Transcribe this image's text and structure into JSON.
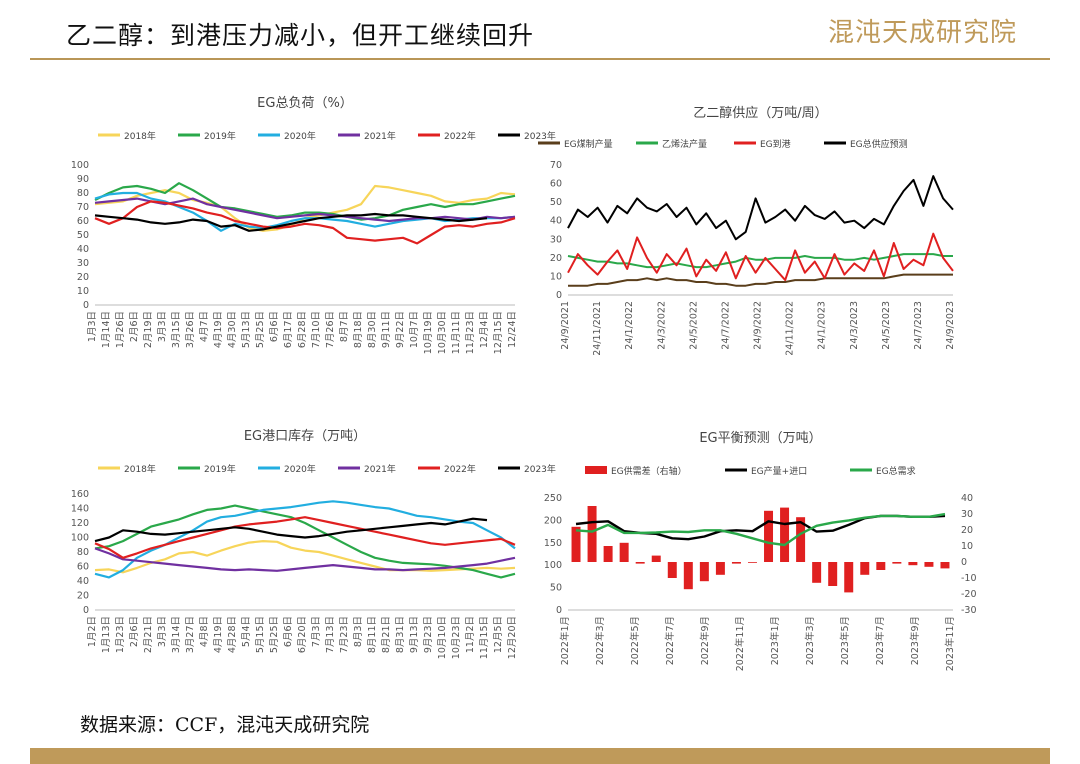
{
  "header": {
    "title": "乙二醇：到港压力减小，但开工继续回升",
    "logo_text": "混沌天成研究院",
    "accent_color": "#bf9a5a"
  },
  "source": "数据来源：CCF，混沌天成研究院",
  "chart_data": [
    {
      "id": "load",
      "type": "line",
      "title": "EG总负荷（%）",
      "ylim": [
        0,
        100
      ],
      "yticks": [
        0,
        10,
        20,
        30,
        40,
        50,
        60,
        70,
        80,
        90,
        100
      ],
      "x_labels": [
        "1月3日",
        "1月14日",
        "1月26日",
        "2月6日",
        "2月19日",
        "3月3日",
        "3月15日",
        "3月26日",
        "4月7日",
        "4月19日",
        "4月30日",
        "5月13日",
        "5月25日",
        "6月6日",
        "6月17日",
        "6月28日",
        "7月10日",
        "7月26日",
        "8月7日",
        "8月18日",
        "8月30日",
        "9月11日",
        "9月22日",
        "10月7日",
        "10月19日",
        "10月30日",
        "11月11日",
        "11月23日",
        "12月4日",
        "12月15日",
        "12/24日"
      ],
      "series": [
        {
          "name": "2018年",
          "color": "#f7d55a",
          "values": [
            72,
            73,
            74,
            78,
            80,
            82,
            80,
            75,
            73,
            70,
            62,
            55,
            53,
            54,
            57,
            62,
            64,
            66,
            68,
            72,
            85,
            84,
            82,
            80,
            78,
            74,
            73,
            75,
            76,
            80,
            79
          ]
        },
        {
          "name": "2019年",
          "color": "#2aa84a",
          "values": [
            75,
            80,
            84,
            85,
            83,
            80,
            87,
            82,
            76,
            70,
            69,
            67,
            65,
            63,
            64,
            66,
            66,
            65,
            63,
            61,
            62,
            64,
            68,
            70,
            72,
            70,
            72,
            72,
            74,
            76,
            78
          ]
        },
        {
          "name": "2020年",
          "color": "#22aee0",
          "values": [
            76,
            79,
            80,
            80,
            76,
            74,
            70,
            66,
            60,
            53,
            58,
            56,
            55,
            57,
            60,
            62,
            62,
            61,
            60,
            58,
            56,
            58,
            60,
            61,
            62,
            60,
            61,
            62,
            62,
            62,
            63
          ]
        },
        {
          "name": "2021年",
          "color": "#7030a0",
          "values": [
            73,
            74,
            75,
            76,
            74,
            72,
            74,
            76,
            72,
            70,
            68,
            66,
            64,
            62,
            63,
            64,
            65,
            64,
            63,
            62,
            61,
            60,
            61,
            62,
            62,
            63,
            62,
            61,
            63,
            62,
            63
          ]
        },
        {
          "name": "2022年",
          "color": "#e02020",
          "values": [
            62,
            58,
            62,
            70,
            74,
            73,
            71,
            69,
            66,
            64,
            60,
            58,
            56,
            55,
            56,
            58,
            57,
            55,
            48,
            47,
            46,
            47,
            48,
            44,
            50,
            56,
            57,
            56,
            58,
            59,
            62
          ]
        },
        {
          "name": "2023年",
          "color": "#000000",
          "values": [
            64,
            63,
            62,
            61,
            59,
            58,
            59,
            61,
            60,
            56,
            57,
            53,
            54,
            56,
            58,
            60,
            62,
            63,
            64,
            64,
            65,
            64,
            64,
            63,
            62,
            61,
            60,
            61,
            62
          ]
        }
      ]
    },
    {
      "id": "supply",
      "type": "line",
      "title": "乙二醇供应（万吨/周）",
      "ylim": [
        0,
        70
      ],
      "yticks": [
        0,
        10,
        20,
        30,
        40,
        50,
        60,
        70
      ],
      "x_labels": [
        "24/9/2021",
        "24/11/2021",
        "24/1/2022",
        "24/3/2022",
        "24/5/2022",
        "24/7/2022",
        "24/9/2022",
        "24/11/2022",
        "24/1/2023",
        "24/3/2023",
        "24/5/2023",
        "24/7/2023",
        "24/9/2023"
      ],
      "series": [
        {
          "name": "EG煤制产量",
          "color": "#5a3e1b",
          "values": [
            5,
            5,
            5,
            6,
            6,
            7,
            8,
            8,
            9,
            8,
            9,
            8,
            8,
            7,
            7,
            6,
            6,
            5,
            5,
            6,
            6,
            7,
            7,
            8,
            8,
            8,
            9,
            9,
            9,
            9,
            9,
            9,
            9,
            10,
            11,
            11,
            11,
            11,
            11,
            11
          ]
        },
        {
          "name": "乙烯法产量",
          "color": "#2aa84a",
          "values": [
            21,
            20,
            19,
            18,
            18,
            17,
            17,
            16,
            15,
            15,
            16,
            17,
            16,
            15,
            15,
            16,
            17,
            18,
            20,
            19,
            19,
            20,
            20,
            20,
            21,
            20,
            20,
            20,
            19,
            19,
            20,
            19,
            20,
            21,
            22,
            22,
            22,
            22,
            21,
            21
          ]
        },
        {
          "name": "EG到港",
          "color": "#e02020",
          "values": [
            12,
            22,
            16,
            11,
            18,
            24,
            14,
            31,
            20,
            12,
            22,
            16,
            25,
            10,
            19,
            13,
            23,
            9,
            21,
            12,
            20,
            14,
            8,
            24,
            12,
            18,
            9,
            22,
            11,
            17,
            13,
            24,
            10,
            28,
            14,
            19,
            16,
            33,
            20,
            13
          ]
        },
        {
          "name": "EG总供应预测",
          "color": "#000000",
          "values": [
            36,
            46,
            42,
            47,
            39,
            48,
            44,
            52,
            47,
            45,
            49,
            42,
            47,
            38,
            44,
            36,
            40,
            30,
            34,
            52,
            39,
            42,
            46,
            40,
            48,
            43,
            41,
            45,
            39,
            40,
            36,
            41,
            38,
            48,
            56,
            62,
            48,
            64,
            52,
            46
          ]
        }
      ]
    },
    {
      "id": "inventory",
      "type": "line",
      "title": "EG港口库存（万吨）",
      "ylim": [
        0,
        160
      ],
      "yticks": [
        0,
        20,
        40,
        60,
        80,
        100,
        120,
        140,
        160
      ],
      "x_labels": [
        "1月2日",
        "1月13日",
        "1月23日",
        "2月6日",
        "2月21日",
        "3月3日",
        "3月14日",
        "3月27日",
        "4月8日",
        "4月19日",
        "4月28日",
        "5月4日",
        "5月15日",
        "5月25日",
        "6月6日",
        "6月20日",
        "7月3日",
        "7月13日",
        "7月23日",
        "8月3日",
        "8月11日",
        "8月21日",
        "8月31日",
        "9月13日",
        "9月23日",
        "10月10日",
        "10月23日",
        "11月2日",
        "11月15日",
        "12月5日",
        "12月20日"
      ],
      "series": [
        {
          "name": "2018年",
          "color": "#f7d55a",
          "values": [
            55,
            56,
            52,
            58,
            65,
            70,
            78,
            80,
            75,
            82,
            88,
            93,
            95,
            94,
            86,
            82,
            80,
            75,
            70,
            65,
            60,
            55,
            55,
            55,
            54,
            55,
            56,
            57,
            58,
            57,
            58
          ]
        },
        {
          "name": "2019年",
          "color": "#2aa84a",
          "values": [
            85,
            88,
            95,
            105,
            115,
            120,
            125,
            132,
            138,
            140,
            144,
            140,
            136,
            132,
            128,
            120,
            110,
            100,
            90,
            80,
            72,
            68,
            65,
            64,
            63,
            61,
            58,
            55,
            50,
            45,
            50
          ]
        },
        {
          "name": "2020年",
          "color": "#22aee0",
          "values": [
            50,
            45,
            55,
            72,
            82,
            90,
            100,
            110,
            122,
            128,
            130,
            134,
            138,
            140,
            142,
            145,
            148,
            150,
            148,
            145,
            142,
            140,
            135,
            130,
            128,
            125,
            122,
            120,
            110,
            100,
            85
          ]
        },
        {
          "name": "2021年",
          "color": "#7030a0",
          "values": [
            85,
            78,
            70,
            68,
            66,
            64,
            62,
            60,
            58,
            56,
            55,
            56,
            55,
            54,
            56,
            58,
            60,
            62,
            60,
            58,
            56,
            56,
            55,
            56,
            57,
            58,
            60,
            62,
            64,
            68,
            72
          ]
        },
        {
          "name": "2022年",
          "color": "#e02020",
          "values": [
            92,
            84,
            72,
            78,
            85,
            90,
            95,
            100,
            105,
            110,
            115,
            118,
            120,
            122,
            125,
            128,
            124,
            120,
            116,
            112,
            108,
            104,
            100,
            96,
            92,
            90,
            92,
            94,
            96,
            98,
            90
          ]
        },
        {
          "name": "2023年",
          "color": "#000000",
          "values": [
            95,
            100,
            110,
            108,
            105,
            104,
            106,
            108,
            110,
            112,
            114,
            112,
            108,
            104,
            102,
            100,
            102,
            105,
            108,
            110,
            112,
            114,
            116,
            118,
            120,
            118,
            122,
            126,
            124
          ]
        }
      ]
    },
    {
      "id": "balance",
      "type": "bar+line",
      "title": "EG平衡预测（万吨）",
      "ylim": [
        0,
        250
      ],
      "yticks": [
        0,
        50,
        100,
        150,
        200,
        250
      ],
      "y2lim": [
        -30,
        40
      ],
      "y2ticks": [
        -30,
        -20,
        -10,
        0,
        10,
        20,
        30,
        40
      ],
      "categories": [
        "2022年1月",
        "2022年2月",
        "2022年3月",
        "2022年4月",
        "2022年5月",
        "2022年6月",
        "2022年7月",
        "2022年8月",
        "2022年9月",
        "2022年10月",
        "2022年11月",
        "2022年12月",
        "2023年1月",
        "2023年2月",
        "2023年3月",
        "2023年4月",
        "2023年5月",
        "2023年6月",
        "2023年7月",
        "2023年8月",
        "2023年9月",
        "2023年10月",
        "2023年11月",
        "2023年12月"
      ],
      "x_labels": [
        "2022年1月",
        "2022年3月",
        "2022年5月",
        "2022年7月",
        "2022年9月",
        "2022年11月",
        "2023年1月",
        "2023年3月",
        "2023年5月",
        "2023年7月",
        "2023年9月",
        "2023年11月"
      ],
      "series": [
        {
          "name": "EG供需差（右轴）",
          "color": "#e02020",
          "axis": "right",
          "type": "bar",
          "values": [
            22,
            35,
            10,
            12,
            -1,
            4,
            -10,
            -17,
            -12,
            -8,
            -1,
            0,
            32,
            34,
            28,
            -13,
            -15,
            -19,
            -8,
            -5,
            -1,
            -2,
            -3,
            -4
          ]
        },
        {
          "name": "EG产量+进口",
          "color": "#000000",
          "axis": "left",
          "type": "line",
          "values": [
            192,
            196,
            198,
            176,
            172,
            170,
            160,
            158,
            164,
            176,
            178,
            176,
            198,
            192,
            196,
            175,
            177,
            190,
            205,
            210,
            210,
            208,
            208,
            210
          ]
        },
        {
          "name": "EG总需求",
          "color": "#2aa84a",
          "axis": "left",
          "type": "line",
          "values": [
            178,
            175,
            190,
            172,
            172,
            173,
            175,
            174,
            178,
            178,
            170,
            160,
            150,
            145,
            170,
            188,
            195,
            200,
            206,
            210,
            210,
            208,
            208,
            214
          ]
        }
      ]
    }
  ]
}
